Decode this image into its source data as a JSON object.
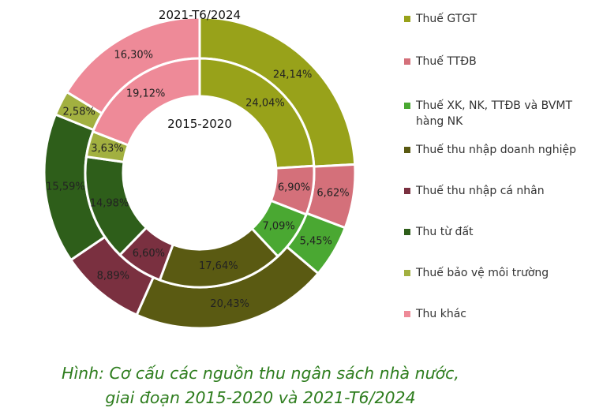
{
  "chart_data": {
    "type": "donut",
    "categories": [
      "Thuế GTGT",
      "Thuế TTĐB",
      "Thuế XK, NK, TTĐB và BVMT hàng NK",
      "Thuế thu nhập doanh nghiệp",
      "Thuế thu nhập cá nhân",
      "Thu từ đất",
      "Thuế bảo vệ môi trường",
      "Thu khác"
    ],
    "colors": [
      "#98a21a",
      "#d4707a",
      "#4aa832",
      "#5a5a12",
      "#7a3040",
      "#2e5e1a",
      "#a2b040",
      "#ee8a98"
    ],
    "series": [
      {
        "name": "2021-T6/2024",
        "ring": "outer",
        "values": [
          24.14,
          6.62,
          5.45,
          20.43,
          8.89,
          15.59,
          2.58,
          16.3
        ],
        "labels": [
          "24,14%",
          "6,62%",
          "5,45%",
          "20,43%",
          "8,89%",
          "15,59%",
          "2,58%",
          "16,30%"
        ]
      },
      {
        "name": "2015-2020",
        "ring": "inner",
        "values": [
          24.04,
          6.9,
          7.09,
          17.64,
          6.6,
          14.98,
          3.63,
          19.12
        ],
        "labels": [
          "24,04%",
          "6,90%",
          "7,09%",
          "17,64%",
          "6,60%",
          "14,98%",
          "3,63%",
          "19,12%"
        ]
      }
    ],
    "legend_position": "right"
  },
  "caption": {
    "line1": "Hình: Cơ cấu các nguồn thu ngân sách nhà nước,",
    "line2": "giai đoạn 2015-2020 và 2021-T6/2024"
  }
}
